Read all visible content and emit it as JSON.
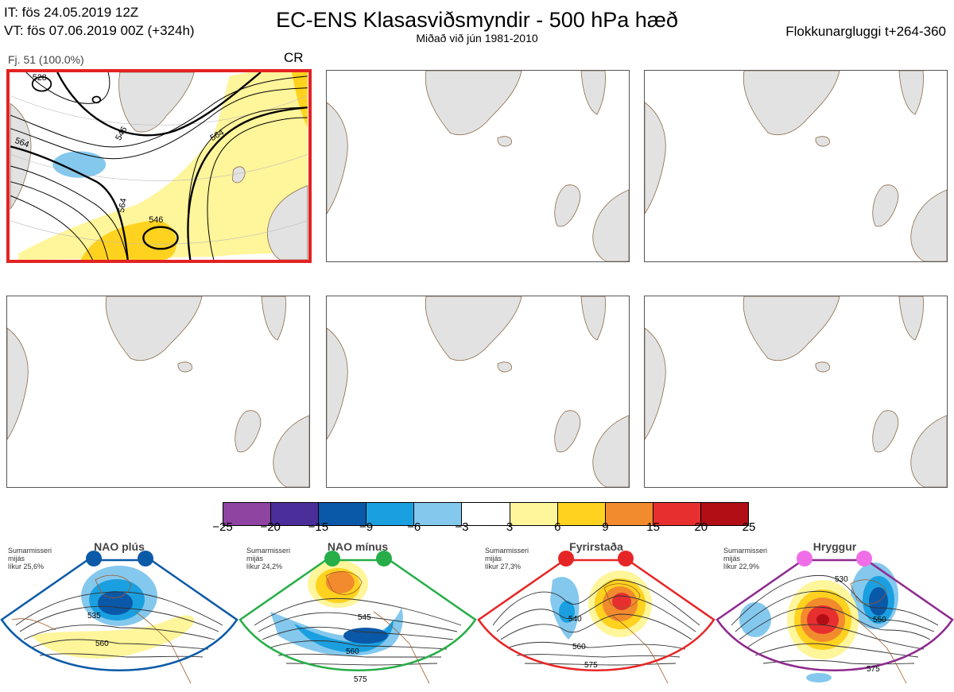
{
  "header": {
    "it_line": "IT: fös 24.05.2019 12Z",
    "vt_line": "VT: fös 07.06.2019 00Z  (+324h)",
    "title": "EC-ENS Klasasviðsmyndir - 500 hPa hæð",
    "subtitle": "Miðað við jún 1981-2010",
    "window": "Flokkunargluggi t+264-360"
  },
  "cluster": {
    "label": "Fj. 51 (100.0%)",
    "regime_code": "CR",
    "contour_labels": [
      "528",
      "546",
      "564",
      "564",
      "546",
      "564"
    ]
  },
  "colorbar": {
    "colors": [
      "#8e44a0",
      "#4b2e9a",
      "#0a58a8",
      "#1aa0e0",
      "#84c8ee",
      "#ffffff",
      "#fff59a",
      "#ffd21f",
      "#f28b2d",
      "#e82f2f",
      "#b20e16"
    ],
    "ticks": [
      "−25",
      "−20",
      "−15",
      "−9",
      "−6",
      "−3",
      "3",
      "6",
      "9",
      "15",
      "20",
      "25"
    ]
  },
  "regimes": [
    {
      "name": "NAO plús",
      "color": "#0b5aa8",
      "season": "Sumarmisseri",
      "freq_label": "mijás",
      "prob": "líkur 25,6%",
      "contours": [
        "535",
        "560"
      ]
    },
    {
      "name": "NAO mínus",
      "color": "#27ae48",
      "season": "Sumarmisseri",
      "freq_label": "mijás",
      "prob": "líkur 24,2%",
      "contours": [
        "545",
        "560",
        "575"
      ]
    },
    {
      "name": "Fyrirstaða",
      "color": "#e62626",
      "season": "Sumarmisseri",
      "freq_label": "mijás",
      "prob": "líkur 27,3%",
      "contours": [
        "540",
        "560",
        "575"
      ]
    },
    {
      "name": "Hryggur",
      "color": "#8e2a8e",
      "season": "Sumarmisseri",
      "freq_label": "mijás",
      "prob": "líkur 22,9%",
      "contours": [
        "530",
        "550",
        "575"
      ]
    }
  ]
}
